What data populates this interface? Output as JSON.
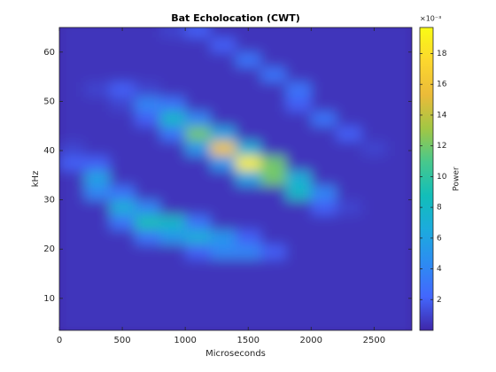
{
  "chart_data": {
    "type": "heatmap",
    "title": "Bat Echolocation (CWT)",
    "x_label": "Microseconds",
    "y_label": "kHz",
    "colorbar_label": "Power",
    "colorbar_exponent": "×10⁻³",
    "x": [
      100,
      300,
      500,
      700,
      900,
      1100,
      1300,
      1500,
      1700,
      1900,
      2100,
      2300,
      2500,
      2700
    ],
    "y": [
      4.5,
      7.5,
      10.5,
      13.5,
      16.5,
      19.5,
      22.5,
      25.5,
      28.5,
      31.5,
      34.5,
      37.5,
      40.5,
      43.5,
      46.5,
      49.5,
      52.5,
      55.5,
      58.5,
      61.5,
      64.5
    ],
    "z": [
      [
        0.0005,
        0.0005,
        0.0005,
        0.0005,
        0.0005,
        0.0005,
        0.0005,
        0.0005,
        0.0005,
        0.0005,
        0.0005,
        0.0005,
        0.0005,
        0.0005
      ],
      [
        0.0005,
        0.0005,
        0.0005,
        0.0005,
        0.0005,
        0.0005,
        0.0005,
        0.0005,
        0.0005,
        0.0005,
        0.0005,
        0.0005,
        0.0005,
        0.0005
      ],
      [
        0.0005,
        0.0005,
        0.0005,
        0.0005,
        0.0005,
        0.0005,
        0.0005,
        0.0005,
        0.0005,
        0.0005,
        0.0005,
        0.0005,
        0.0005,
        0.0005
      ],
      [
        0.0005,
        0.0005,
        0.0005,
        0.0005,
        0.0005,
        0.0005,
        0.0005,
        0.0005,
        0.0005,
        0.0005,
        0.0005,
        0.0005,
        0.0005,
        0.0005
      ],
      [
        0.0005,
        0.0005,
        0.0005,
        0.0005,
        0.0005,
        0.0005,
        0.0005,
        0.0005,
        0.0005,
        0.0005,
        0.0005,
        0.0005,
        0.0005,
        0.0005
      ],
      [
        0.0005,
        0.0005,
        0.0005,
        0.0005,
        0.0005,
        0.002,
        0.004,
        0.004,
        0.002,
        0.0005,
        0.0005,
        0.0005,
        0.0005,
        0.0005
      ],
      [
        0.0005,
        0.0005,
        0.0005,
        0.003,
        0.005,
        0.007,
        0.005,
        0.002,
        0.0005,
        0.0005,
        0.0005,
        0.0005,
        0.0005,
        0.0005
      ],
      [
        0.0005,
        0.0005,
        0.003,
        0.009,
        0.008,
        0.003,
        0.0005,
        0.0005,
        0.0005,
        0.0005,
        0.0005,
        0.0005,
        0.0005,
        0.0005
      ],
      [
        0.0005,
        0.0005,
        0.007,
        0.004,
        0.0005,
        0.0005,
        0.0005,
        0.0005,
        0.0005,
        0.0005,
        0.002,
        0.001,
        0.0005,
        0.0005
      ],
      [
        0.0005,
        0.004,
        0.003,
        0.0005,
        0.0005,
        0.0005,
        0.0005,
        0.0005,
        0.0005,
        0.008,
        0.004,
        0.0005,
        0.0005,
        0.0005
      ],
      [
        0.0005,
        0.006,
        0.0005,
        0.0005,
        0.0005,
        0.0005,
        0.0005,
        0.006,
        0.012,
        0.007,
        0.0005,
        0.0005,
        0.0005,
        0.0005
      ],
      [
        0.002,
        0.002,
        0.0005,
        0.0005,
        0.0005,
        0.0005,
        0.005,
        0.019,
        0.012,
        0.0005,
        0.0005,
        0.0005,
        0.0005,
        0.0005
      ],
      [
        0.001,
        0.0005,
        0.0005,
        0.0005,
        0.0005,
        0.005,
        0.016,
        0.007,
        0.0005,
        0.0005,
        0.0005,
        0.0005,
        0.001,
        0.0005
      ],
      [
        0.0005,
        0.0005,
        0.0005,
        0.0005,
        0.003,
        0.012,
        0.006,
        0.0005,
        0.0005,
        0.0005,
        0.0005,
        0.002,
        0.0005,
        0.0005
      ],
      [
        0.0005,
        0.0005,
        0.0005,
        0.002,
        0.008,
        0.004,
        0.0005,
        0.0005,
        0.0005,
        0.0005,
        0.003,
        0.0005,
        0.0005,
        0.0005
      ],
      [
        0.0005,
        0.0005,
        0.001,
        0.004,
        0.003,
        0.0005,
        0.0005,
        0.0005,
        0.0005,
        0.002,
        0.0005,
        0.0005,
        0.0005,
        0.0005
      ],
      [
        0.0005,
        0.001,
        0.002,
        0.001,
        0.0005,
        0.0005,
        0.0005,
        0.0005,
        0.0005,
        0.003,
        0.0005,
        0.0005,
        0.0005,
        0.0005
      ],
      [
        0.0005,
        0.0005,
        0.0005,
        0.0005,
        0.0005,
        0.0005,
        0.0005,
        0.0005,
        0.003,
        0.0005,
        0.0005,
        0.0005,
        0.0005,
        0.0005
      ],
      [
        0.0005,
        0.0005,
        0.0005,
        0.0005,
        0.0005,
        0.0005,
        0.0005,
        0.003,
        0.0005,
        0.0005,
        0.0005,
        0.0005,
        0.0005,
        0.0005
      ],
      [
        0.0005,
        0.0005,
        0.0005,
        0.0005,
        0.0005,
        0.0005,
        0.002,
        0.0005,
        0.0005,
        0.0005,
        0.0005,
        0.0005,
        0.0005,
        0.0005
      ],
      [
        0.0005,
        0.0005,
        0.0005,
        0.0005,
        0.001,
        0.002,
        0.0005,
        0.0005,
        0.0005,
        0.0005,
        0.0005,
        0.0005,
        0.0005,
        0.0005
      ]
    ],
    "xlim": [
      0,
      2800
    ],
    "xticks": [
      0,
      500,
      1000,
      1500,
      2000,
      2500
    ],
    "ylim": [
      3.5,
      65
    ],
    "yticks": [
      10,
      20,
      30,
      40,
      50,
      60
    ],
    "clim": [
      0,
      0.0197
    ],
    "cticks": [
      {
        "value": 0.002,
        "label": "2"
      },
      {
        "value": 0.004,
        "label": "4"
      },
      {
        "value": 0.006,
        "label": "6"
      },
      {
        "value": 0.008,
        "label": "8"
      },
      {
        "value": 0.01,
        "label": "10"
      },
      {
        "value": 0.012,
        "label": "12"
      },
      {
        "value": 0.014,
        "label": "14"
      },
      {
        "value": 0.016,
        "label": "16"
      },
      {
        "value": 0.018,
        "label": "18"
      }
    ],
    "colormap": [
      "#3e26a8",
      "#4367fd",
      "#2d8cf2",
      "#1cabdd",
      "#12beb9",
      "#47c88d",
      "#a2c744",
      "#ebbb39",
      "#fcd72e",
      "#f9fb15"
    ]
  }
}
